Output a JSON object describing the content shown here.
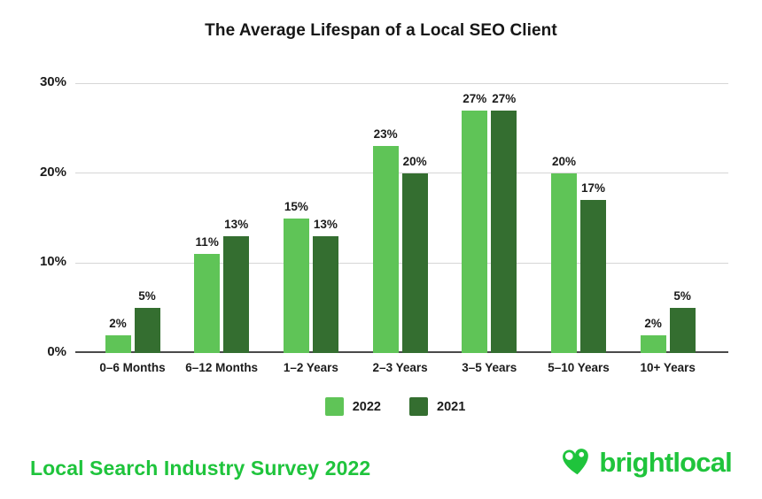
{
  "title": "The Average Lifespan of a Local SEO Client",
  "chart_data": {
    "type": "bar",
    "title": "The Average Lifespan of a Local SEO Client",
    "categories": [
      "0–6 Months",
      "6–12 Months",
      "1–2 Years",
      "2–3 Years",
      "3–5 Years",
      "5–10 Years",
      "10+ Years"
    ],
    "series": [
      {
        "name": "2022",
        "color": "#5FC457",
        "values": [
          2,
          11,
          15,
          23,
          27,
          20,
          2
        ]
      },
      {
        "name": "2021",
        "color": "#346E30",
        "values": [
          5,
          13,
          13,
          20,
          27,
          17,
          5
        ]
      }
    ],
    "value_label_suffix": "%",
    "y_ticks": [
      0,
      10,
      20,
      30
    ],
    "y_tick_suffix": "%",
    "ylim": [
      0,
      30
    ],
    "grid": true,
    "legend_position": "bottom"
  },
  "footer": {
    "source_label": "Local Search Industry Survey 2022",
    "brand_name": "brightlocal"
  },
  "colors": {
    "series_2022": "#5FC457",
    "series_2021": "#346E30",
    "brand_green": "#1FC43C",
    "gridline": "#D6D6D6",
    "axis_line": "#4A4A4A",
    "text": "#1B1B1B"
  }
}
